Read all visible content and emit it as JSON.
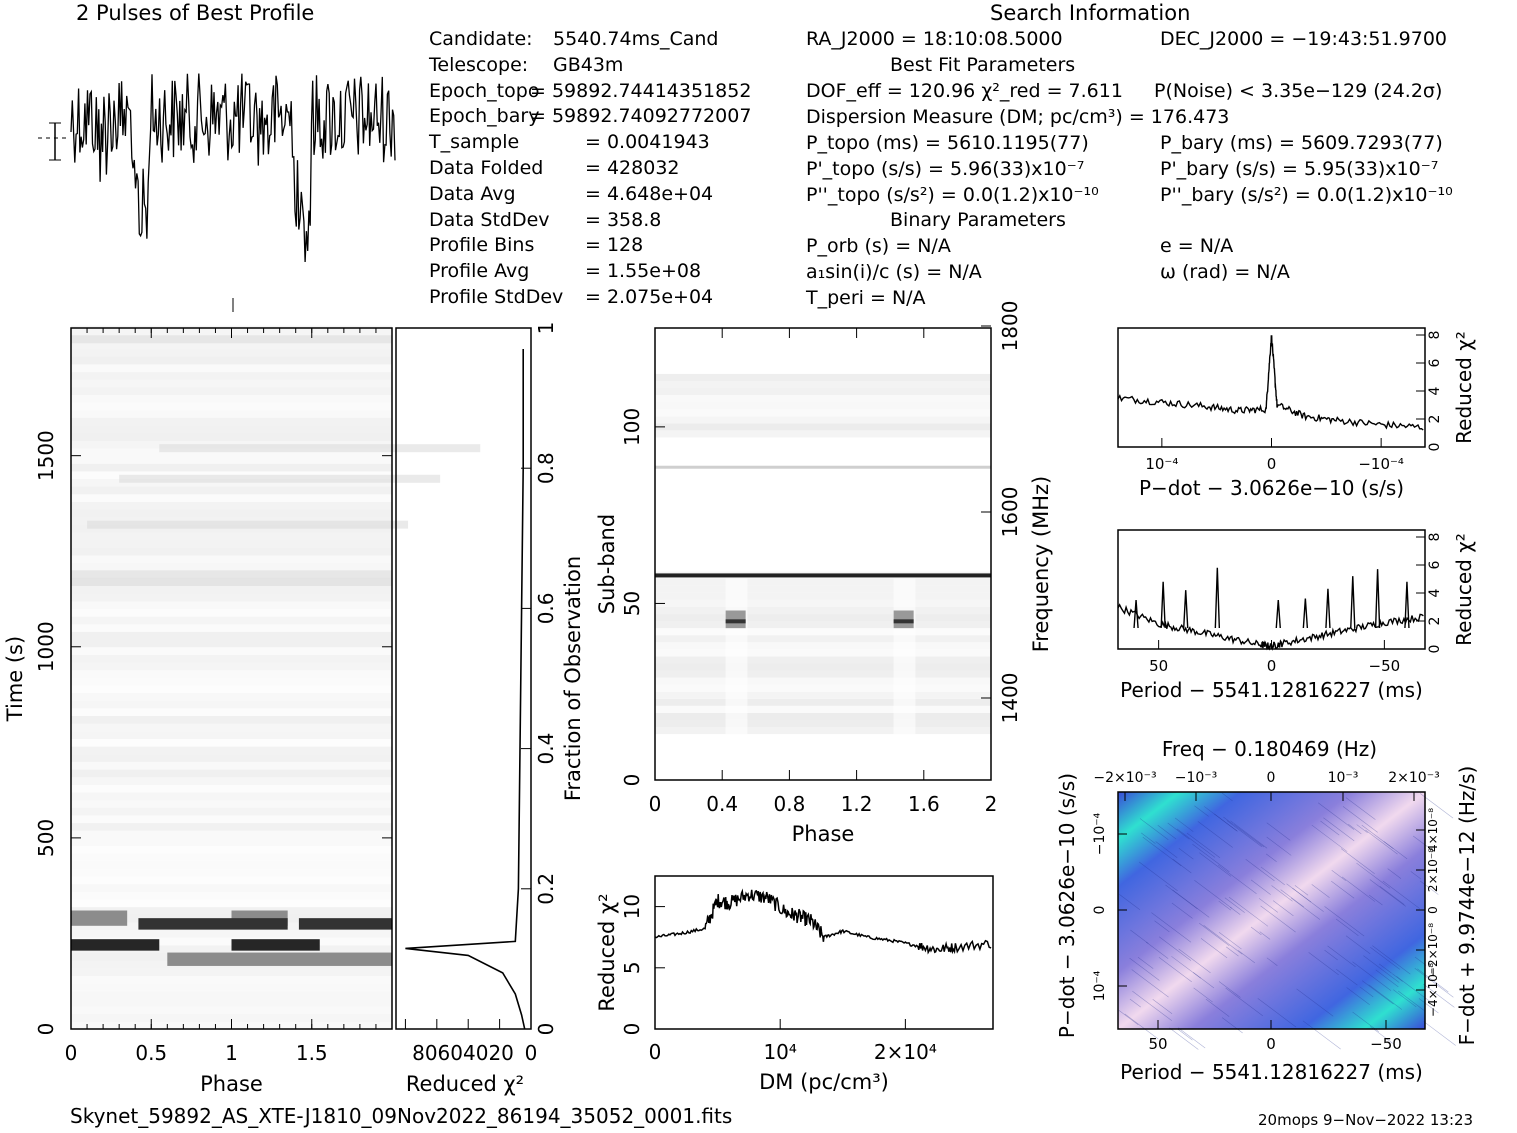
{
  "header": {
    "profile_title": "2 Pulses of Best Profile",
    "search_title": "Search Information"
  },
  "candidate_info": [
    {
      "label": "Candidate:",
      "value": "5540.74ms_Cand"
    },
    {
      "label": "Telescope:",
      "value": "GB43m"
    },
    {
      "label": "Epoch_topo",
      "value": "= 59892.74414351852"
    },
    {
      "label": "Epoch_bary",
      "value": "= 59892.74092772007"
    },
    {
      "label": "T_sample",
      "value": "= 0.0041943"
    },
    {
      "label": "Data Folded",
      "value": "= 428032"
    },
    {
      "label": "Data Avg",
      "value": "= 4.648e+04"
    },
    {
      "label": "Data StdDev",
      "value": "= 358.8"
    },
    {
      "label": "Profile Bins",
      "value": "= 128"
    },
    {
      "label": "Profile Avg",
      "value": "= 1.55e+08"
    },
    {
      "label": "Profile StdDev",
      "value": "= 2.075e+04"
    }
  ],
  "search_info": {
    "ra": "RA_J2000 = 18:10:08.5000",
    "dec": "DEC_J2000 = −19:43:51.9700",
    "best_fit_header": "Best Fit Parameters",
    "dof": "DOF_eff = 120.96   χ²_red = 7.611",
    "p_noise": "P(Noise) < 3.35e−129   (24.2σ)",
    "dm": "Dispersion Measure (DM; pc/cm³) = 176.473",
    "p_topo": "P_topo (ms) =  5610.1195(77)",
    "p_bary": "P_bary (ms) =  5609.7293(77)",
    "pd_topo": "P'_topo (s/s) =  5.96(33)x10⁻⁷",
    "pd_bary": "P'_bary (s/s) =  5.95(33)x10⁻⁷",
    "pdd_topo": "P''_topo (s/s²) = 0.0(1.2)x10⁻¹⁰",
    "pdd_bary": "P''_bary (s/s²) = 0.0(1.2)x10⁻¹⁰",
    "binary_header": "Binary Parameters",
    "p_orb": "P_orb (s) = N/A",
    "e": "e = N/A",
    "a1sini": "a₁sin(i)/c (s) = N/A",
    "omega": "ω (rad) = N/A",
    "t_peri": "T_peri = N/A"
  },
  "footer": {
    "filename": "Skynet_59892_AS_XTE-J1810_09Nov2022_86194_35052_0001.fits",
    "stamp": "20mops   9−Nov−2022 13:23"
  },
  "chart_data": [
    {
      "name": "time-phase",
      "type": "heatmap",
      "xlabel": "Phase",
      "ylabel": "Time (s)",
      "xlim": [
        0,
        2
      ],
      "ylim": [
        0,
        1834
      ],
      "x_ticks": [
        "0",
        "0.5",
        "1",
        "1.5"
      ],
      "y_ticks": [
        "0",
        "500",
        "1000",
        "1500"
      ],
      "bands": [
        {
          "t0": 270,
          "t1": 310,
          "phase": [
            0.0,
            0.35
          ],
          "gray": 0.55
        },
        {
          "t0": 270,
          "t1": 310,
          "phase": [
            1.0,
            1.35
          ],
          "gray": 0.55
        },
        {
          "t0": 260,
          "t1": 290,
          "phase": [
            0.42,
            1.35
          ],
          "gray": 0.2
        },
        {
          "t0": 260,
          "t1": 290,
          "phase": [
            1.42,
            2.0
          ],
          "gray": 0.2
        },
        {
          "t0": 205,
          "t1": 235,
          "phase": [
            0.0,
            0.55
          ],
          "gray": 0.15
        },
        {
          "t0": 205,
          "t1": 235,
          "phase": [
            1.0,
            1.55
          ],
          "gray": 0.15
        },
        {
          "t0": 165,
          "t1": 200,
          "phase": [
            0.6,
            2.0
          ],
          "gray": 0.55
        }
      ]
    },
    {
      "name": "fraction-chi2",
      "type": "line",
      "xlabel": "Reduced χ²",
      "ylabel": "Fraction of Observation",
      "x_ticks": [
        "80",
        "60",
        "40",
        "20",
        "0"
      ],
      "y_ticks": [
        "0",
        "0.2",
        "0.4",
        "0.6",
        "0.8",
        "1"
      ],
      "x_reversed": true,
      "xlim": [
        0,
        86
      ],
      "ylim": [
        0,
        1
      ],
      "points": [
        [
          4,
          0
        ],
        [
          6,
          0.02
        ],
        [
          10,
          0.05
        ],
        [
          18,
          0.08
        ],
        [
          40,
          0.105
        ],
        [
          80,
          0.115
        ],
        [
          10,
          0.125
        ],
        [
          8,
          0.2
        ],
        [
          7,
          0.4
        ],
        [
          6,
          0.6
        ],
        [
          5,
          0.8
        ],
        [
          5,
          0.97
        ]
      ]
    },
    {
      "name": "subband-phase",
      "type": "heatmap",
      "xlabel": "Phase",
      "ylabel": "Sub-band",
      "y2label": "Frequency (MHz)",
      "xlim": [
        0,
        2
      ],
      "ylim": [
        0,
        128
      ],
      "x_ticks": [
        "0",
        "0.4",
        "0.8",
        "1.2",
        "1.6",
        "2"
      ],
      "y_ticks": [
        "0",
        "50",
        "100"
      ],
      "y2_ticks": [
        "1400",
        "1600",
        "1800"
      ],
      "bright_rows": [
        {
          "sub": 57.5,
          "gray": 0.1
        }
      ],
      "pulse_blobs": [
        {
          "phase": 0.48,
          "sub": [
            43,
            48
          ]
        },
        {
          "phase": 1.48,
          "sub": [
            43,
            48
          ]
        }
      ]
    },
    {
      "name": "dm-chi2",
      "type": "line",
      "xlabel": "DM (pc/cm³)",
      "ylabel": "Reduced χ²",
      "xlim": [
        0,
        27000
      ],
      "ylim": [
        0,
        12.5
      ],
      "x_ticks": [
        "0",
        "10⁴",
        "2×10⁴"
      ],
      "y_ticks": [
        "0",
        "5",
        "10"
      ],
      "points": [
        [
          0,
          7.5
        ],
        [
          2000,
          7.8
        ],
        [
          4000,
          8.2
        ],
        [
          5000,
          10.5
        ],
        [
          6000,
          10.3
        ],
        [
          7500,
          11
        ],
        [
          9000,
          10.7
        ],
        [
          10500,
          9.5
        ],
        [
          11500,
          9.2
        ],
        [
          12500,
          8.8
        ],
        [
          13500,
          7.5
        ],
        [
          15000,
          8.0
        ],
        [
          17000,
          7.5
        ],
        [
          19000,
          7.2
        ],
        [
          21000,
          6.8
        ],
        [
          22500,
          6.5
        ],
        [
          24000,
          6.7
        ],
        [
          27000,
          7.0
        ]
      ]
    },
    {
      "name": "pdot-chi2",
      "type": "line",
      "xlabel": "P−dot − 3.0626e−10 (s/s)",
      "ylabel": "Reduced χ²",
      "xlim": [
        -1.4,
        1.4
      ],
      "ylim": [
        0,
        8.5
      ],
      "x_ticks": [
        "10⁻⁴",
        "0",
        "−10⁻⁴"
      ],
      "y_ticks": [
        "0",
        "2",
        "4",
        "6",
        "8"
      ],
      "points": [
        [
          -1.4,
          3.5
        ],
        [
          -1.0,
          3.2
        ],
        [
          -0.6,
          2.9
        ],
        [
          -0.3,
          2.6
        ],
        [
          -0.05,
          2.7
        ],
        [
          0,
          8.0
        ],
        [
          0.05,
          3.0
        ],
        [
          0.3,
          2.2
        ],
        [
          0.6,
          1.9
        ],
        [
          1.0,
          1.6
        ],
        [
          1.4,
          1.4
        ]
      ]
    },
    {
      "name": "period-chi2",
      "type": "line",
      "xlabel": "Period − 5541.12816227 (ms)",
      "ylabel": "Reduced χ²",
      "xlim": [
        68,
        -68
      ],
      "ylim": [
        0,
        8.5
      ],
      "x_ticks": [
        "50",
        "0",
        "−50"
      ],
      "y_ticks": [
        "0",
        "2",
        "4",
        "6",
        "8"
      ],
      "points": [
        [
          68,
          3.0
        ],
        [
          50,
          1.8
        ],
        [
          35,
          1.3
        ],
        [
          20,
          0.8
        ],
        [
          5,
          0.3
        ],
        [
          0,
          0.2
        ],
        [
          -5,
          0.4
        ],
        [
          -20,
          0.9
        ],
        [
          -35,
          1.4
        ],
        [
          -50,
          1.9
        ],
        [
          -68,
          2.3
        ]
      ],
      "spikes": [
        [
          60,
          3.5
        ],
        [
          48,
          4.8
        ],
        [
          38,
          4.2
        ],
        [
          24,
          5.8
        ],
        [
          -3,
          3.5
        ],
        [
          -15,
          3.6
        ],
        [
          -25,
          4.3
        ],
        [
          -36,
          5.2
        ],
        [
          -47,
          5.7
        ],
        [
          -60,
          4.8
        ]
      ]
    },
    {
      "name": "ppdot-plane",
      "type": "heatmap",
      "title": "Freq − 0.180469 (Hz)",
      "xlabel": "Period − 5541.12816227 (ms)",
      "ylabel": "P−dot − 3.0626e−10 (s/s)",
      "y2label": "F−dot + 9.9744e−12 (Hz/s)",
      "x_ticks": [
        "50",
        "0",
        "−50"
      ],
      "x2_ticks": [
        "−2×10⁻³",
        "−10⁻³",
        "0",
        "10⁻³",
        "2×10⁻³"
      ],
      "y_ticks": [
        "10⁻⁴",
        "0",
        "−10⁻⁴"
      ],
      "y2_ticks": [
        "−4×10⁻⁸",
        "−2×10⁻⁸",
        "0",
        "2×10⁻⁸",
        "4×10⁻⁸"
      ],
      "colors": {
        "low": "#3a4ad8",
        "mid": "#b79bd8",
        "high": "#f1d9ee",
        "edge": "#2fe0d0"
      }
    }
  ]
}
